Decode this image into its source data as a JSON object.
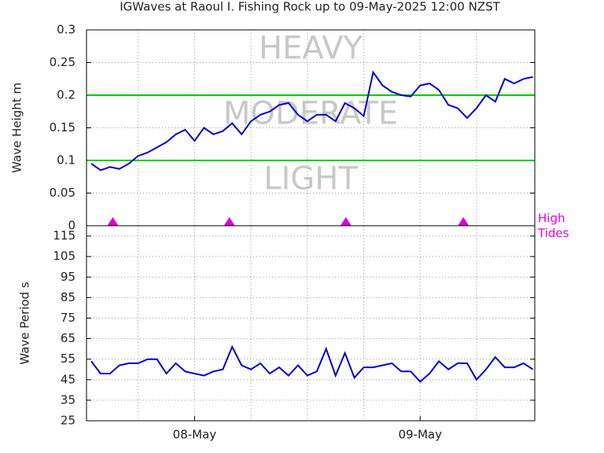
{
  "title": "IGWaves at Raoul I. Fishing Rock up to 09-May-2025 12:00 NZST",
  "chart_data": [
    {
      "type": "line",
      "ylabel": "Wave Height m",
      "x": [
        -11,
        -10,
        -9,
        -8,
        -7,
        -6,
        -5,
        -4,
        -3,
        -2,
        -1,
        0,
        1,
        2,
        3,
        4,
        5,
        6,
        7,
        8,
        9,
        10,
        11,
        12,
        13,
        14,
        15,
        16,
        17,
        18,
        19,
        20,
        21,
        22,
        23,
        24,
        25,
        26,
        27,
        28,
        29,
        30,
        31,
        32,
        33,
        34,
        35,
        36
      ],
      "values": [
        0.095,
        0.085,
        0.09,
        0.087,
        0.095,
        0.107,
        0.112,
        0.12,
        0.128,
        0.14,
        0.147,
        0.13,
        0.15,
        0.14,
        0.145,
        0.157,
        0.14,
        0.16,
        0.17,
        0.175,
        0.185,
        0.188,
        0.17,
        0.16,
        0.17,
        0.17,
        0.16,
        0.188,
        0.18,
        0.168,
        0.235,
        0.215,
        0.205,
        0.2,
        0.198,
        0.215,
        0.218,
        0.208,
        0.185,
        0.18,
        0.165,
        0.18,
        0.2,
        0.19,
        0.225,
        0.218,
        0.225,
        0.228
      ],
      "color": "#0000cc",
      "xlim": [
        -11.5,
        36.2
      ],
      "xgrid": [
        -6,
        0,
        6,
        12,
        18,
        24,
        30
      ],
      "ylim": [
        0,
        0.3
      ],
      "yticks": [
        0,
        0.05,
        0.1,
        0.15,
        0.2,
        0.25,
        0.3
      ],
      "grid": true,
      "thresholds": [
        0.1,
        0.2
      ],
      "threshold_color": "#00cc00",
      "zones": [
        "LIGHT",
        "MODERATE",
        "HEAVY"
      ],
      "tides": {
        "label": [
          "High",
          "Tides"
        ],
        "x": [
          -8.7,
          3.7,
          16.1,
          28.6
        ],
        "color": "#dd00dd"
      }
    },
    {
      "type": "line",
      "ylabel": "Wave Period s",
      "x": [
        -11,
        -10,
        -9,
        -8,
        -7,
        -6,
        -5,
        -4,
        -3,
        -2,
        -1,
        0,
        1,
        2,
        3,
        4,
        5,
        6,
        7,
        8,
        9,
        10,
        11,
        12,
        13,
        14,
        15,
        16,
        17,
        18,
        19,
        20,
        21,
        22,
        23,
        24,
        25,
        26,
        27,
        28,
        29,
        30,
        31,
        32,
        33,
        34,
        35,
        36
      ],
      "values": [
        54,
        48,
        48,
        52,
        53,
        53,
        55,
        55,
        48,
        53,
        49,
        48,
        47,
        49,
        50,
        61,
        52,
        50,
        53,
        48,
        51,
        47,
        52,
        47,
        49,
        60,
        47,
        58,
        46,
        51,
        51,
        52,
        53,
        49,
        49,
        44,
        48,
        54,
        50,
        53,
        53,
        45,
        50,
        56,
        51,
        51,
        53,
        50
      ],
      "color": "#0000cc",
      "xlim": [
        -11.5,
        36.2
      ],
      "xgrid": [
        -6,
        0,
        6,
        12,
        18,
        24,
        30
      ],
      "xticks": [
        {
          "value": 0,
          "label": "08-May"
        },
        {
          "value": 24,
          "label": "09-May"
        }
      ],
      "ylim": [
        25,
        120
      ],
      "yticks": [
        25,
        35,
        45,
        55,
        65,
        75,
        85,
        95,
        105,
        115
      ],
      "grid": true
    }
  ]
}
